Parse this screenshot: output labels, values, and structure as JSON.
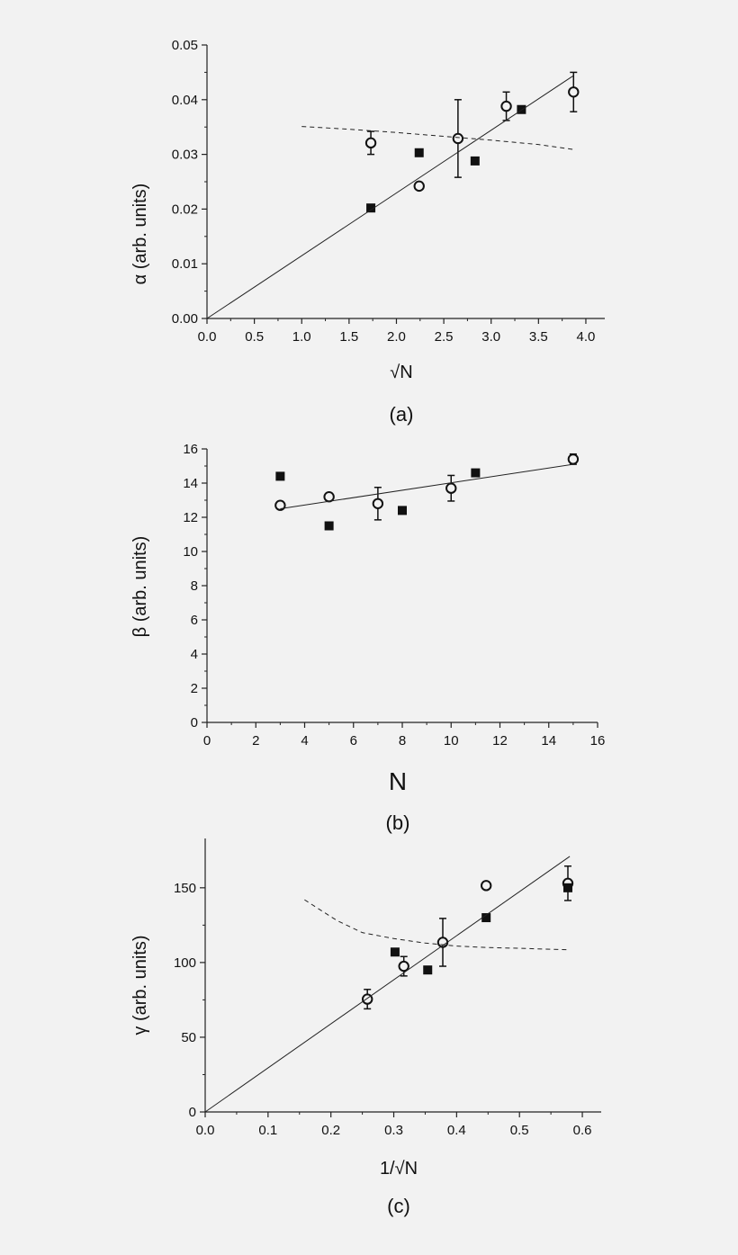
{
  "chart_data": [
    {
      "type": "scatter",
      "panel_label": "(a)",
      "xlabel": "√N",
      "ylabel": "α (arb. units)",
      "xlim": [
        0.0,
        4.2
      ],
      "ylim": [
        0.0,
        0.05
      ],
      "x_ticks": [
        "0.0",
        "0.5",
        "1.0",
        "1.5",
        "2.0",
        "2.5",
        "3.0",
        "3.5",
        "4.0"
      ],
      "x_tick_values": [
        0.0,
        0.5,
        1.0,
        1.5,
        2.0,
        2.5,
        3.0,
        3.5,
        4.0
      ],
      "y_ticks": [
        "0.00",
        "0.01",
        "0.02",
        "0.03",
        "0.04",
        "0.05"
      ],
      "y_tick_values": [
        0.0,
        0.01,
        0.02,
        0.03,
        0.04,
        0.05
      ],
      "grid": false,
      "series": [
        {
          "marker": "open-circle",
          "points": [
            {
              "x": 1.73,
              "y": 0.0321,
              "err": 0.0021
            },
            {
              "x": 2.24,
              "y": 0.0242,
              "err": 0
            },
            {
              "x": 2.65,
              "y": 0.0329,
              "err": 0.0071
            },
            {
              "x": 3.16,
              "y": 0.0388,
              "err": 0.0026
            },
            {
              "x": 3.87,
              "y": 0.0414,
              "err": 0.0036
            }
          ]
        },
        {
          "marker": "filled-square",
          "points": [
            {
              "x": 1.73,
              "y": 0.0202
            },
            {
              "x": 2.24,
              "y": 0.0303
            },
            {
              "x": 2.83,
              "y": 0.0288
            },
            {
              "x": 3.32,
              "y": 0.0382
            }
          ]
        },
        {
          "line": "solid",
          "points": [
            [
              0.0,
              0.0
            ],
            [
              3.87,
              0.0444
            ]
          ]
        },
        {
          "line": "dashed",
          "points": [
            [
              1.0,
              0.0351
            ],
            [
              1.5,
              0.0346
            ],
            [
              2.0,
              0.034
            ],
            [
              2.5,
              0.0333
            ],
            [
              3.0,
              0.0326
            ],
            [
              3.5,
              0.0318
            ],
            [
              3.87,
              0.0309
            ]
          ]
        }
      ]
    },
    {
      "type": "scatter",
      "panel_label": "(b)",
      "xlabel": "N",
      "ylabel": "β (arb. units)",
      "xlim": [
        0,
        16
      ],
      "ylim": [
        0,
        16
      ],
      "x_ticks": [
        "0",
        "2",
        "4",
        "6",
        "8",
        "10",
        "12",
        "14",
        "16"
      ],
      "x_tick_values": [
        0,
        2,
        4,
        6,
        8,
        10,
        12,
        14,
        16
      ],
      "y_ticks": [
        "0",
        "2",
        "4",
        "6",
        "8",
        "10",
        "12",
        "14",
        "16"
      ],
      "y_tick_values": [
        0,
        2,
        4,
        6,
        8,
        10,
        12,
        14,
        16
      ],
      "grid": false,
      "series": [
        {
          "marker": "open-circle",
          "points": [
            {
              "x": 3,
              "y": 12.7,
              "err": 0
            },
            {
              "x": 5,
              "y": 13.2,
              "err": 0.1
            },
            {
              "x": 7,
              "y": 12.8,
              "err": 0.95
            },
            {
              "x": 10,
              "y": 13.7,
              "err": 0.75
            },
            {
              "x": 15,
              "y": 15.4,
              "err": 0.3
            }
          ]
        },
        {
          "marker": "filled-square",
          "points": [
            {
              "x": 3,
              "y": 14.4
            },
            {
              "x": 5,
              "y": 11.5
            },
            {
              "x": 8,
              "y": 12.4
            },
            {
              "x": 11,
              "y": 14.6
            }
          ]
        },
        {
          "line": "solid",
          "points": [
            [
              3,
              12.5
            ],
            [
              15,
              15.1
            ]
          ]
        }
      ]
    },
    {
      "type": "scatter",
      "panel_label": "(c)",
      "xlabel": "1/√N",
      "ylabel": "γ (arb. units)",
      "xlim": [
        0.0,
        0.63
      ],
      "ylim": [
        0,
        183
      ],
      "x_ticks": [
        "0.0",
        "0.1",
        "0.2",
        "0.3",
        "0.4",
        "0.5",
        "0.6"
      ],
      "x_tick_values": [
        0.0,
        0.1,
        0.2,
        0.3,
        0.4,
        0.5,
        0.6
      ],
      "y_ticks": [
        "0",
        "50",
        "100",
        "150"
      ],
      "y_tick_values": [
        0,
        50,
        100,
        150
      ],
      "grid": false,
      "series": [
        {
          "marker": "open-circle",
          "points": [
            {
              "x": 0.258,
              "y": 75.5,
              "err": 6.5
            },
            {
              "x": 0.316,
              "y": 97.5,
              "err": 6.5
            },
            {
              "x": 0.378,
              "y": 113.5,
              "err": 16
            },
            {
              "x": 0.447,
              "y": 151.5,
              "err": 0
            },
            {
              "x": 0.577,
              "y": 153,
              "err": 11.5
            }
          ]
        },
        {
          "marker": "filled-square",
          "points": [
            {
              "x": 0.302,
              "y": 107
            },
            {
              "x": 0.354,
              "y": 95
            },
            {
              "x": 0.447,
              "y": 130
            },
            {
              "x": 0.577,
              "y": 150
            }
          ]
        },
        {
          "line": "solid",
          "points": [
            [
              0.0,
              0.0
            ],
            [
              0.58,
              171
            ]
          ]
        },
        {
          "line": "dashed",
          "points": [
            [
              0.158,
              142
            ],
            [
              0.18,
              136
            ],
            [
              0.21,
              128
            ],
            [
              0.25,
              120
            ],
            [
              0.3,
              116
            ],
            [
              0.35,
              113
            ],
            [
              0.4,
              111
            ],
            [
              0.45,
              110
            ],
            [
              0.5,
              109.5
            ],
            [
              0.58,
              108.5
            ]
          ]
        }
      ]
    }
  ]
}
